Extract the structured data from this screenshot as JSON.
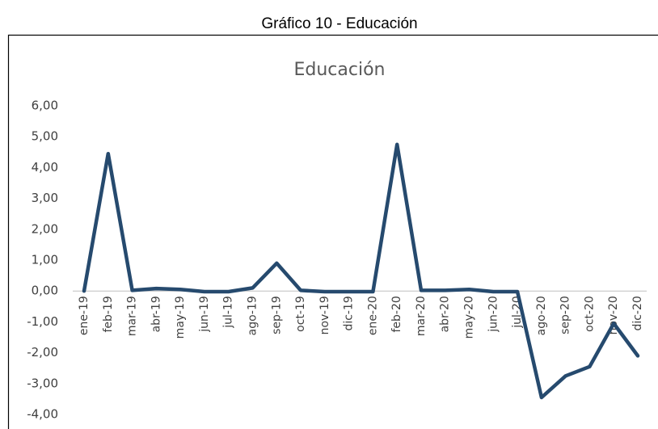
{
  "caption": "Gráfico  10 - Educación",
  "chart_data": {
    "type": "line",
    "title": "Educación",
    "categories": [
      "ene-19",
      "feb-19",
      "mar-19",
      "abr-19",
      "may-19",
      "jun-19",
      "jul-19",
      "ago-19",
      "sep-19",
      "oct-19",
      "nov-19",
      "dic-19",
      "ene-20",
      "feb-20",
      "mar-20",
      "abr-20",
      "may-20",
      "jun-20",
      "jul-20",
      "ago-20",
      "sep-20",
      "oct-20",
      "nov-20",
      "dic-20"
    ],
    "series": [
      {
        "name": "Educación",
        "color": "#264a6e",
        "values": [
          0,
          4.45,
          0.02,
          0.08,
          0.05,
          -0.02,
          -0.02,
          0.1,
          0.9,
          0.02,
          -0.02,
          -0.02,
          -0.02,
          4.75,
          0.02,
          0.02,
          0.05,
          -0.02,
          -0.02,
          -3.45,
          -2.75,
          -2.45,
          -1.05,
          -2.1
        ]
      }
    ],
    "ylim": [
      -4,
      6
    ],
    "yticks": [
      {
        "value": 6,
        "label": "6,00"
      },
      {
        "value": 5,
        "label": "5,00"
      },
      {
        "value": 4,
        "label": "4,00"
      },
      {
        "value": 3,
        "label": "3,00"
      },
      {
        "value": 2,
        "label": "2,00"
      },
      {
        "value": 1,
        "label": "1,00"
      },
      {
        "value": 0,
        "label": "0,00"
      },
      {
        "value": -1,
        "label": "-1,00"
      },
      {
        "value": -2,
        "label": "-2,00"
      },
      {
        "value": -3,
        "label": "-3,00"
      },
      {
        "value": -4,
        "label": "-4,00"
      }
    ],
    "grid": false
  }
}
